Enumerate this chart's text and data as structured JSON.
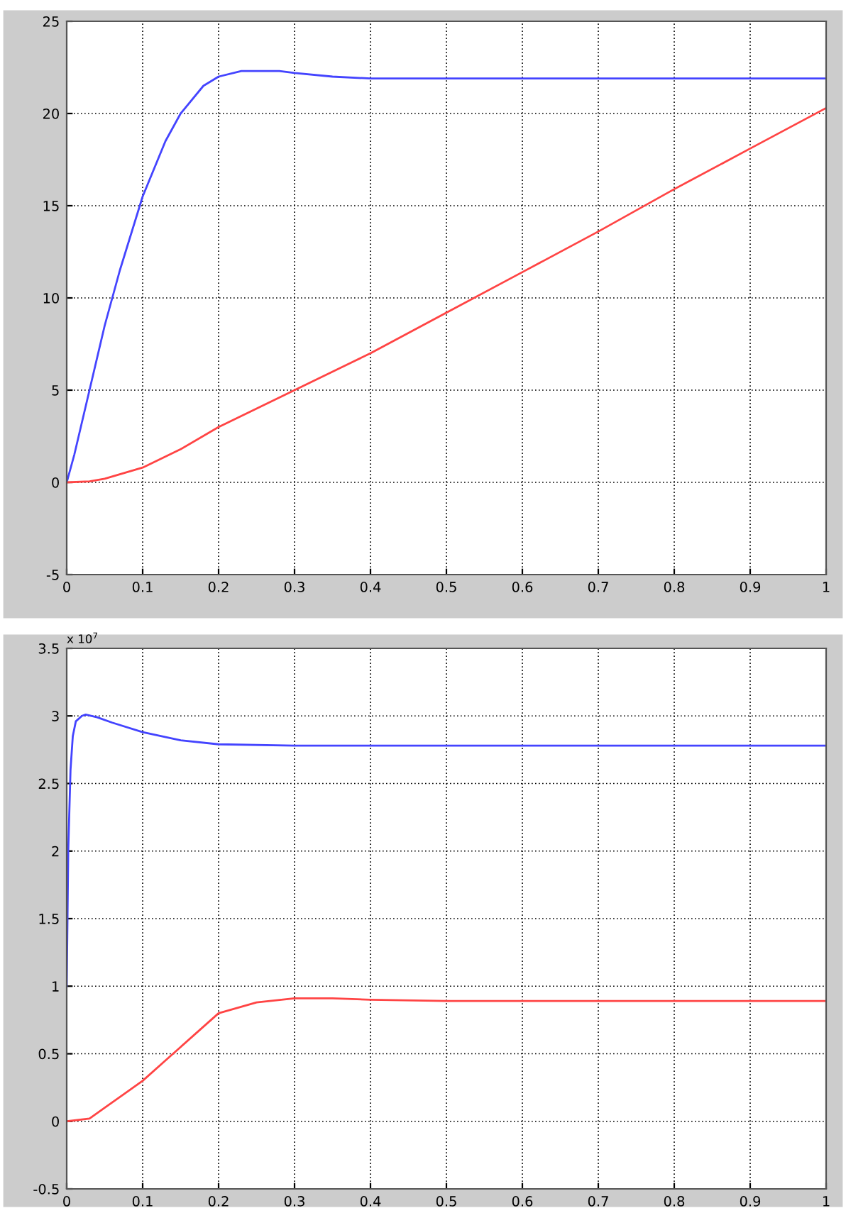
{
  "chart_data": [
    {
      "type": "line",
      "xlim": [
        0,
        1
      ],
      "ylim": [
        -5,
        25
      ],
      "xticks": [
        0,
        0.1,
        0.2,
        0.3,
        0.4,
        0.5,
        0.6,
        0.7,
        0.8,
        0.9,
        1
      ],
      "yticks": [
        -5,
        0,
        5,
        10,
        15,
        20,
        25
      ],
      "grid": true,
      "line_style": "solid",
      "series": [
        {
          "color": "#4444ff",
          "x": [
            0,
            0.01,
            0.03,
            0.05,
            0.07,
            0.1,
            0.13,
            0.15,
            0.18,
            0.2,
            0.23,
            0.25,
            0.28,
            0.3,
            0.35,
            0.4,
            0.5,
            0.6,
            0.7,
            0.8,
            0.9,
            1
          ],
          "values": [
            0,
            1.5,
            5,
            8.5,
            11.5,
            15.5,
            18.5,
            20,
            21.5,
            22,
            22.3,
            22.3,
            22.3,
            22.2,
            22,
            21.9,
            21.9,
            21.9,
            21.9,
            21.9,
            21.9,
            21.9
          ]
        },
        {
          "color": "#ff4444",
          "x": [
            0,
            0.03,
            0.05,
            0.1,
            0.15,
            0.2,
            0.3,
            0.4,
            0.5,
            0.6,
            0.7,
            0.8,
            0.9,
            1
          ],
          "values": [
            0,
            0.05,
            0.2,
            0.8,
            1.8,
            3,
            5,
            7,
            9.2,
            11.4,
            13.6,
            15.9,
            18.1,
            20.3
          ]
        }
      ]
    },
    {
      "type": "line",
      "xlim": [
        0,
        1
      ],
      "ylim": [
        -0.5,
        3.5
      ],
      "xticks": [
        0,
        0.1,
        0.2,
        0.3,
        0.4,
        0.5,
        0.6,
        0.7,
        0.8,
        0.9,
        1
      ],
      "yticks": [
        -0.5,
        0,
        0.5,
        1,
        1.5,
        2,
        2.5,
        3,
        3.5
      ],
      "grid": true,
      "line_style": "solid",
      "annotations": [
        "x 10$^{7}$"
      ],
      "series": [
        {
          "color": "#4444ff",
          "x": [
            0,
            0.002,
            0.005,
            0.008,
            0.012,
            0.02,
            0.025,
            0.04,
            0.06,
            0.1,
            0.15,
            0.2,
            0.3,
            0.4,
            0.5,
            0.6,
            0.7,
            0.8,
            0.9,
            1
          ],
          "values": [
            1.0,
            2.0,
            2.6,
            2.85,
            2.96,
            3.0,
            3.01,
            2.99,
            2.95,
            2.88,
            2.82,
            2.79,
            2.78,
            2.78,
            2.78,
            2.78,
            2.78,
            2.78,
            2.78,
            2.78
          ]
        },
        {
          "color": "#ff4444",
          "x": [
            0,
            0.03,
            0.05,
            0.08,
            0.1,
            0.13,
            0.15,
            0.18,
            0.2,
            0.25,
            0.3,
            0.35,
            0.4,
            0.5,
            0.6,
            0.7,
            0.8,
            0.9,
            1
          ],
          "values": [
            0,
            0.02,
            0.1,
            0.22,
            0.3,
            0.45,
            0.55,
            0.7,
            0.8,
            0.88,
            0.91,
            0.91,
            0.9,
            0.89,
            0.89,
            0.89,
            0.89,
            0.89,
            0.89
          ]
        }
      ]
    }
  ]
}
